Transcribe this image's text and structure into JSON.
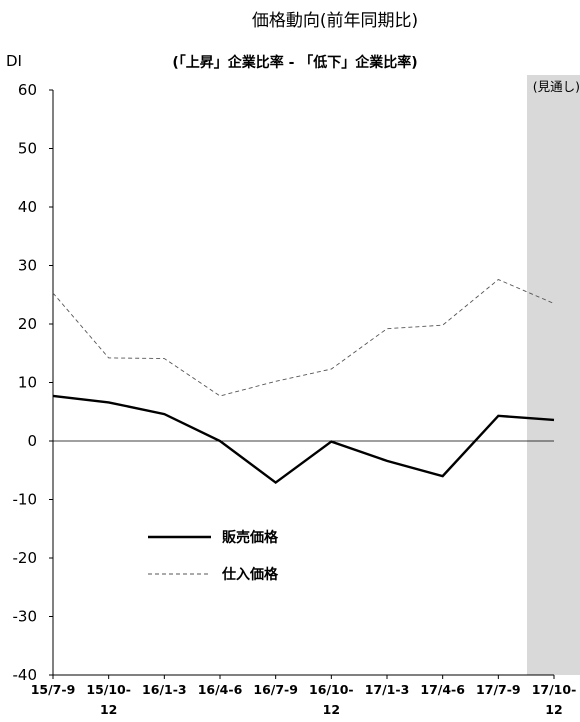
{
  "chart_data": {
    "type": "line",
    "title": "価格動向(前年同期比)",
    "subtitle": "(「上昇」企業比率 - 「低下」企業比率)",
    "ylabel": "DI",
    "xlabel": "",
    "ylim": [
      -40,
      60
    ],
    "yticks": [
      60,
      50,
      40,
      30,
      20,
      10,
      0,
      -10,
      -20,
      -30,
      -40
    ],
    "ytick_labels": [
      "60",
      "50",
      "40",
      "30",
      "20",
      "10",
      "0",
      "-10",
      "-20",
      "-30",
      "-40"
    ],
    "categories": [
      [
        "15/7-9"
      ],
      [
        "15/10-",
        "12"
      ],
      [
        "16/1-3"
      ],
      [
        "16/4-6"
      ],
      [
        "16/7-9"
      ],
      [
        "16/10-",
        "12"
      ],
      [
        "17/1-3"
      ],
      [
        "17/4-6"
      ],
      [
        "17/7-9"
      ],
      [
        "17/10-",
        "12"
      ]
    ],
    "grid": false,
    "forecast_label": "(見通し)",
    "forecast_color": "#d9d9d9",
    "legend_position": "lower-left",
    "series": [
      {
        "name": "販売価格",
        "style": "solid",
        "color": "#000000",
        "values": [
          7.7,
          6.6,
          4.6,
          0.0,
          -7.1,
          -0.1,
          -3.4,
          -6.0,
          4.3,
          3.6
        ]
      },
      {
        "name": "仕入価格",
        "style": "dashed",
        "color": "#555555",
        "values": [
          25.3,
          14.2,
          14.1,
          7.7,
          10.2,
          12.3,
          19.2,
          19.8,
          27.6,
          23.5
        ]
      }
    ]
  }
}
